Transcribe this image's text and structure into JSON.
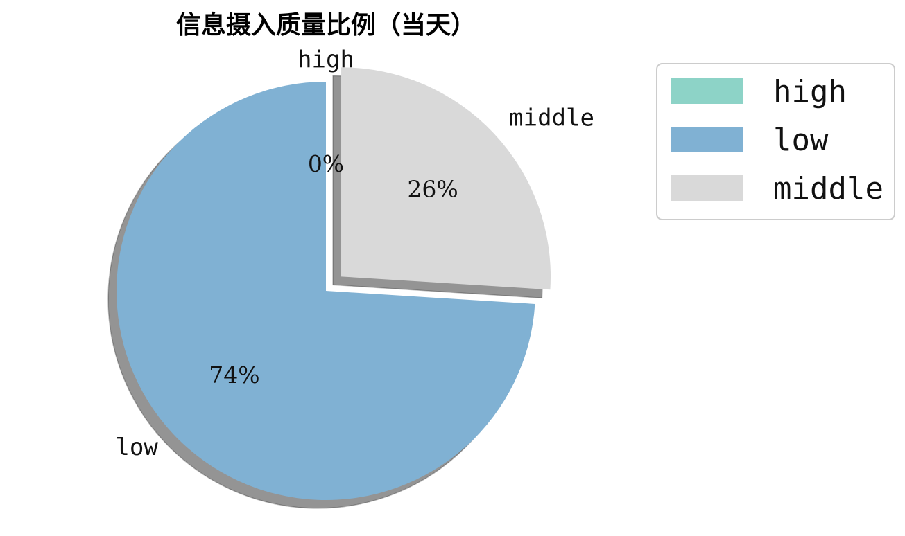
{
  "chart_data": {
    "type": "pie",
    "title": "信息摄入质量比例（当天）",
    "categories": [
      "high",
      "low",
      "middle"
    ],
    "values": [
      0,
      74,
      26
    ],
    "value_labels": [
      "0%",
      "74%",
      "26%"
    ],
    "colors": [
      "#8dd3c7",
      "#80b1d3",
      "#d9d9d9"
    ],
    "explode": [
      0,
      0,
      0.1
    ],
    "start_angle": 90,
    "shadow": true,
    "legend": {
      "entries": [
        "high",
        "low",
        "middle"
      ],
      "placement": "top-right"
    }
  }
}
